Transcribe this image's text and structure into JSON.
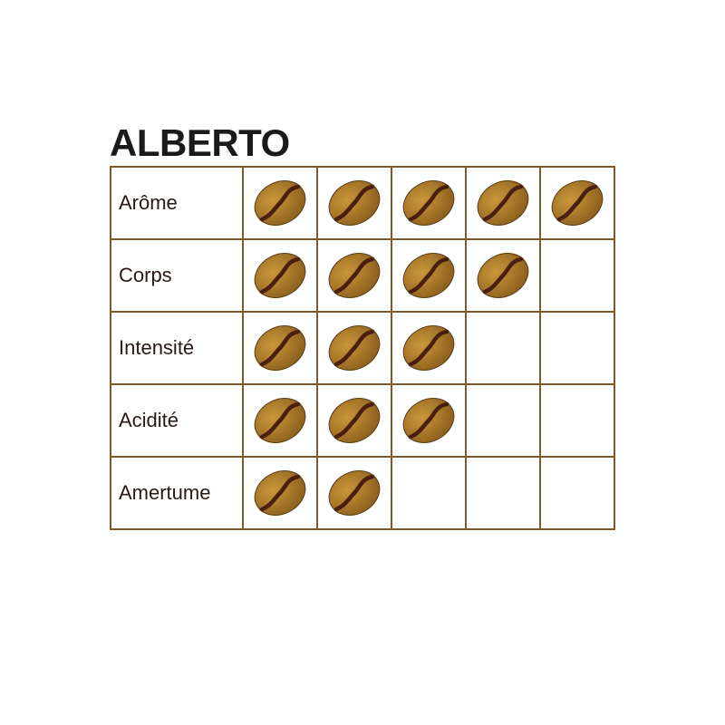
{
  "title": "ALBERTO",
  "max_rating": 5,
  "rows": [
    {
      "label": "Arôme",
      "rating": 5
    },
    {
      "label": "Corps",
      "rating": 4
    },
    {
      "label": "Intensité",
      "rating": 3
    },
    {
      "label": "Acidité",
      "rating": 3
    },
    {
      "label": "Amertume",
      "rating": 2
    }
  ],
  "icon": "coffee-bean-icon",
  "colors": {
    "grid": "#7a5c2e",
    "bean_light": "#c9973a",
    "bean_dark": "#8a5e1c",
    "bean_crease": "#4a1e10"
  }
}
